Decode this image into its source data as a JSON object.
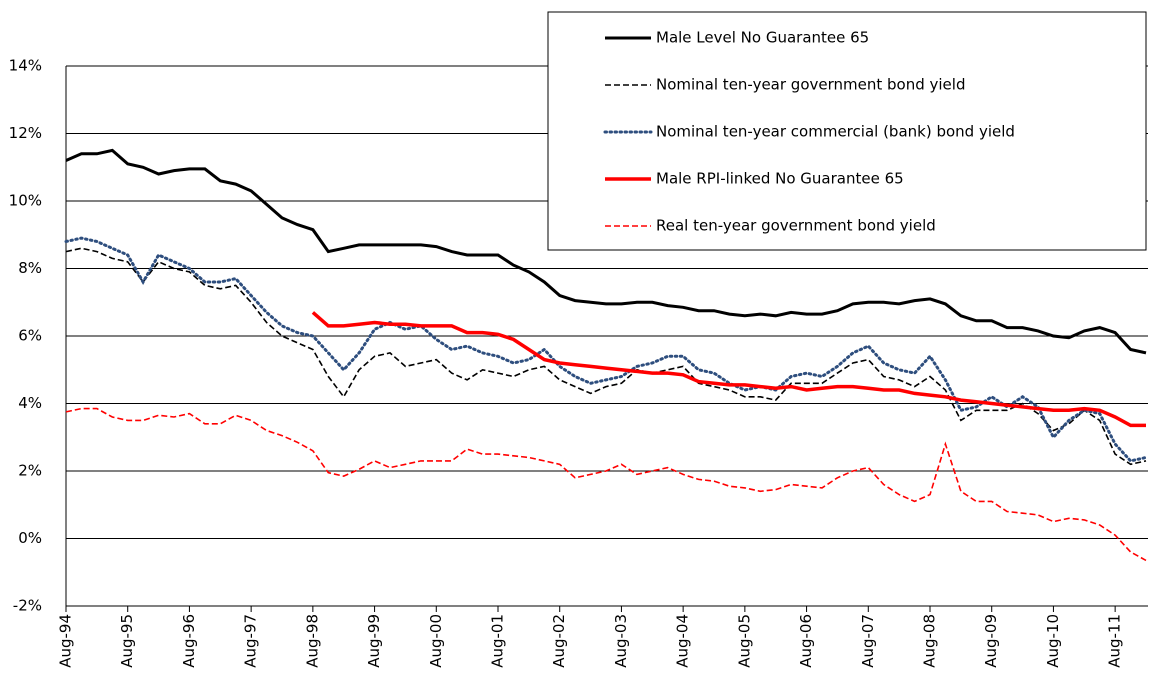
{
  "chart_data": {
    "type": "line",
    "categories": [
      "Aug-94",
      null,
      null,
      null,
      "Aug-95",
      null,
      null,
      null,
      "Aug-96",
      null,
      null,
      null,
      "Aug-97",
      null,
      null,
      null,
      "Aug-98",
      null,
      null,
      null,
      "Aug-99",
      null,
      null,
      null,
      "Aug-00",
      null,
      null,
      null,
      "Aug-01",
      null,
      null,
      null,
      "Aug-02",
      null,
      null,
      null,
      "Aug-03",
      null,
      null,
      null,
      "Aug-04",
      null,
      null,
      null,
      "Aug-05",
      null,
      null,
      null,
      "Aug-06",
      null,
      null,
      null,
      "Aug-07",
      null,
      null,
      null,
      "Aug-08",
      null,
      null,
      null,
      "Aug-09",
      null,
      null,
      null,
      "Aug-10",
      null,
      null,
      null,
      "Aug-11",
      null,
      null
    ],
    "series": [
      {
        "name": "Male Level No Guarantee 65",
        "color": "#000000",
        "dash": "solid",
        "width": 3,
        "values": [
          11.2,
          11.4,
          11.4,
          11.5,
          11.1,
          11.0,
          10.8,
          10.9,
          10.95,
          10.95,
          10.6,
          10.5,
          10.3,
          9.9,
          9.5,
          9.3,
          9.15,
          8.5,
          8.6,
          8.7,
          8.7,
          8.7,
          8.7,
          8.7,
          8.65,
          8.5,
          8.4,
          8.4,
          8.4,
          8.1,
          7.9,
          7.6,
          7.2,
          7.05,
          7.0,
          6.95,
          6.95,
          7.0,
          7.0,
          6.9,
          6.85,
          6.75,
          6.75,
          6.65,
          6.6,
          6.65,
          6.6,
          6.7,
          6.65,
          6.65,
          6.75,
          6.95,
          7.0,
          7.0,
          6.95,
          7.05,
          7.1,
          6.95,
          6.6,
          6.45,
          6.45,
          6.25,
          6.25,
          6.15,
          6.0,
          5.95,
          6.15,
          6.25,
          6.1,
          5.6,
          5.5
        ]
      },
      {
        "name": "Nominal ten-year government bond yield",
        "color": "#000000",
        "dash": "dashed",
        "width": 1.6,
        "values": [
          8.5,
          8.6,
          8.5,
          8.3,
          8.2,
          7.6,
          8.2,
          8.0,
          7.9,
          7.5,
          7.4,
          7.5,
          7.0,
          6.4,
          6.0,
          5.8,
          5.6,
          4.8,
          4.2,
          5.0,
          5.4,
          5.5,
          5.1,
          5.2,
          5.3,
          4.9,
          4.7,
          5.0,
          4.9,
          4.8,
          5.0,
          5.1,
          4.7,
          4.5,
          4.3,
          4.5,
          4.6,
          5.0,
          4.9,
          5.0,
          5.1,
          4.6,
          4.5,
          4.4,
          4.2,
          4.2,
          4.1,
          4.6,
          4.6,
          4.6,
          4.9,
          5.2,
          5.3,
          4.8,
          4.7,
          4.5,
          4.8,
          4.4,
          3.5,
          3.8,
          3.8,
          3.8,
          4.0,
          3.7,
          3.2,
          3.4,
          3.8,
          3.5,
          2.5,
          2.2,
          2.3
        ]
      },
      {
        "name": "Nominal ten-year commercial (bank) bond yield",
        "color": "#2e4e7e",
        "dash": "dotted",
        "width": 3,
        "values": [
          8.8,
          8.9,
          8.8,
          8.6,
          8.4,
          7.6,
          8.4,
          8.2,
          8.0,
          7.6,
          7.6,
          7.7,
          7.2,
          6.7,
          6.3,
          6.1,
          6.0,
          5.5,
          5.0,
          5.5,
          6.2,
          6.4,
          6.2,
          6.3,
          5.9,
          5.6,
          5.7,
          5.5,
          5.4,
          5.2,
          5.3,
          5.6,
          5.1,
          4.8,
          4.6,
          4.7,
          4.8,
          5.1,
          5.2,
          5.4,
          5.4,
          5.0,
          4.9,
          4.6,
          4.4,
          4.5,
          4.4,
          4.8,
          4.9,
          4.8,
          5.1,
          5.5,
          5.7,
          5.2,
          5.0,
          4.9,
          5.4,
          4.7,
          3.8,
          3.9,
          4.2,
          3.9,
          4.2,
          3.9,
          3.0,
          3.5,
          3.8,
          3.7,
          2.8,
          2.3,
          2.4
        ]
      },
      {
        "name": "Male RPI-linked No Guarantee 65",
        "color": "#ff0000",
        "dash": "solid",
        "width": 3.5,
        "values": [
          null,
          null,
          null,
          null,
          null,
          null,
          null,
          null,
          null,
          null,
          null,
          null,
          null,
          null,
          null,
          null,
          6.7,
          6.3,
          6.3,
          6.35,
          6.4,
          6.35,
          6.35,
          6.3,
          6.3,
          6.3,
          6.1,
          6.1,
          6.05,
          5.9,
          5.6,
          5.3,
          5.2,
          5.15,
          5.1,
          5.05,
          5.0,
          4.95,
          4.9,
          4.9,
          4.85,
          4.65,
          4.6,
          4.55,
          4.55,
          4.5,
          4.45,
          4.5,
          4.4,
          4.45,
          4.5,
          4.5,
          4.45,
          4.4,
          4.4,
          4.3,
          4.25,
          4.2,
          4.1,
          4.05,
          4.0,
          3.95,
          3.9,
          3.85,
          3.8,
          3.8,
          3.85,
          3.8,
          3.6,
          3.35,
          3.35
        ]
      },
      {
        "name": "Real ten-year government bond yield",
        "color": "#ff0000",
        "dash": "dashed",
        "width": 1.6,
        "values": [
          3.75,
          3.85,
          3.85,
          3.6,
          3.5,
          3.5,
          3.65,
          3.6,
          3.7,
          3.4,
          3.4,
          3.65,
          3.5,
          3.2,
          3.05,
          2.85,
          2.6,
          1.95,
          1.85,
          2.05,
          2.3,
          2.1,
          2.2,
          2.3,
          2.3,
          2.3,
          2.65,
          2.5,
          2.5,
          2.45,
          2.4,
          2.3,
          2.2,
          1.8,
          1.9,
          2.0,
          2.2,
          1.9,
          2.0,
          2.1,
          1.9,
          1.75,
          1.7,
          1.55,
          1.5,
          1.4,
          1.45,
          1.6,
          1.55,
          1.5,
          1.8,
          2.0,
          2.1,
          1.6,
          1.3,
          1.1,
          1.3,
          2.8,
          1.4,
          1.1,
          1.1,
          0.8,
          0.75,
          0.7,
          0.5,
          0.6,
          0.55,
          0.4,
          0.1,
          -0.4,
          -0.65
        ]
      }
    ],
    "ylim": [
      -2,
      14
    ],
    "yticks": [
      {
        "value": -2,
        "label": "-2%"
      },
      {
        "value": 0,
        "label": "0%"
      },
      {
        "value": 2,
        "label": "2%"
      },
      {
        "value": 4,
        "label": "4%"
      },
      {
        "value": 6,
        "label": "6%"
      },
      {
        "value": 8,
        "label": "8%"
      },
      {
        "value": 10,
        "label": "10%"
      },
      {
        "value": 12,
        "label": "12%"
      },
      {
        "value": 14,
        "label": "14%"
      }
    ],
    "grid": true,
    "legend": "top-right"
  }
}
